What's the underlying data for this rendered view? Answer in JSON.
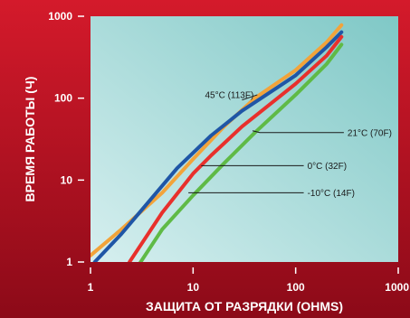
{
  "colors": {
    "frame_top": "#d41a2b",
    "frame_bottom": "#8c0a18",
    "plot_light": "#d6efef",
    "plot_dark": "#7fc8c6",
    "axis_text": "#ffffff",
    "annotation_text": "#1a1a1a",
    "leader_line": "#1a1a1a"
  },
  "chart_data": {
    "type": "line",
    "title": "",
    "xlabel": "ЗАЩИТА ОТ РАЗРЯДКИ (OHMS)",
    "ylabel": "ВРЕМЯ РАБОТЫ (Ч)",
    "xscale": "log",
    "yscale": "log",
    "xlim": [
      1,
      1000
    ],
    "ylim": [
      1,
      1000
    ],
    "x_ticks": [
      {
        "value": 1,
        "label": "1"
      },
      {
        "value": 10,
        "label": "10"
      },
      {
        "value": 100,
        "label": "100"
      },
      {
        "value": 1000,
        "label": "1000"
      }
    ],
    "y_ticks": [
      {
        "value": 1,
        "label": "1"
      },
      {
        "value": 10,
        "label": "10"
      },
      {
        "value": 100,
        "label": "100"
      },
      {
        "value": 1000,
        "label": "1000"
      }
    ],
    "grid": false,
    "legend": "none",
    "series": [
      {
        "name": "45°C (113F)",
        "color": "#f2a33a",
        "points": [
          [
            1,
            1.2
          ],
          [
            2,
            2.5
          ],
          [
            5,
            7
          ],
          [
            10,
            18
          ],
          [
            20,
            45
          ],
          [
            40,
            100
          ],
          [
            100,
            220
          ],
          [
            200,
            480
          ],
          [
            280,
            780
          ]
        ]
      },
      {
        "name": "21°C (70F)",
        "color": "#1f56a6",
        "points": [
          [
            1.1,
            1.0
          ],
          [
            2,
            2.2
          ],
          [
            7,
            14
          ],
          [
            15,
            35
          ],
          [
            30,
            70
          ],
          [
            100,
            190
          ],
          [
            200,
            420
          ],
          [
            280,
            640
          ]
        ]
      },
      {
        "name": "0°C (32F)",
        "color": "#e8302c",
        "points": [
          [
            2.4,
            1.0
          ],
          [
            5,
            4
          ],
          [
            10,
            12
          ],
          [
            15,
            20
          ],
          [
            30,
            45
          ],
          [
            100,
            150
          ],
          [
            200,
            330
          ],
          [
            280,
            560
          ]
        ]
      },
      {
        "name": "-10°C (14F)",
        "color": "#5fba46",
        "points": [
          [
            3,
            0.95
          ],
          [
            5,
            2.5
          ],
          [
            10,
            6.5
          ],
          [
            20,
            16
          ],
          [
            40,
            38
          ],
          [
            100,
            110
          ],
          [
            200,
            260
          ],
          [
            280,
            450
          ]
        ]
      }
    ],
    "annotations": [
      {
        "text": "45°C (113F)",
        "series": "45°C (113F)",
        "point": [
          30,
          95
        ],
        "text_at": [
          12,
          110
        ],
        "side": "left"
      },
      {
        "text": "21°C (70F)",
        "series": "21°C (70F)",
        "point": [
          38,
          40
        ],
        "text_at": [
          320,
          38
        ],
        "side": "right"
      },
      {
        "text": "0°C (32F)",
        "series": "0°C (32F)",
        "point": [
          12,
          15
        ],
        "text_at": [
          130,
          15
        ],
        "side": "right"
      },
      {
        "text": "-10°C (14F)",
        "series": "-10°C (14F)",
        "point": [
          9,
          7
        ],
        "text_at": [
          130,
          7
        ],
        "side": "right"
      }
    ]
  }
}
